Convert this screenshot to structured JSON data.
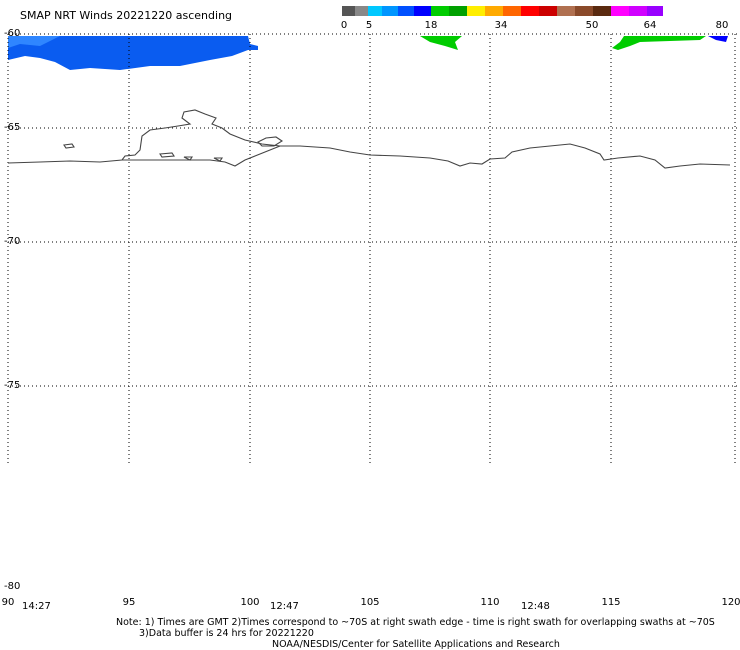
{
  "title": "SMAP NRT Winds 20221220 ascending",
  "colorbar": {
    "labels": [
      "0",
      "5",
      "18",
      "34",
      "50",
      "64",
      "80"
    ],
    "segments": [
      "#555555",
      "#888888",
      "#00c8ff",
      "#0096ff",
      "#0050ff",
      "#0000ff",
      "#00cc00",
      "#00a000",
      "#ffee00",
      "#ffaa00",
      "#ff6600",
      "#ff0000",
      "#cc0000",
      "#b07050",
      "#8a4a2a",
      "#5a2a10",
      "#ff00ff",
      "#d000ff",
      "#9900ff"
    ]
  },
  "lat_labels": [
    "-60",
    "-65",
    "-70",
    "-75",
    "-80"
  ],
  "lon_labels": [
    "90",
    "95",
    "100",
    "105",
    "110",
    "115",
    "120"
  ],
  "swath_times": [
    "14:27",
    "12:47",
    "12:48"
  ],
  "notes": {
    "line1": "Note: 1) Times are GMT 2)Times correspond to ~70S at right swath edge - time is right swath for overlapping swaths at ~70S",
    "line2": "3)Data buffer is 24 hrs for 20221220",
    "line3": "NOAA/NESDIS/Center for Satellite Applications and Research"
  },
  "colors": {
    "low_wind": "#0050ff",
    "mid_wind": "#00cc00",
    "coast": "#444444",
    "grid": "#000000"
  }
}
